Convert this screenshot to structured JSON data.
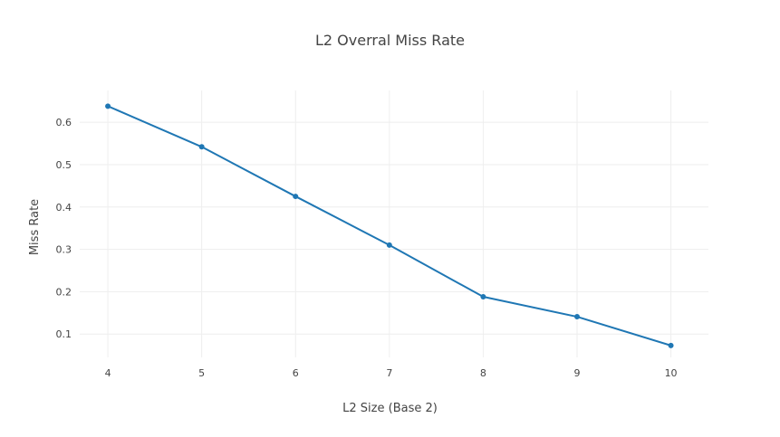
{
  "chart_data": {
    "type": "line",
    "title": "L2 Overral Miss Rate",
    "xlabel": "L2 Size (Base 2)",
    "ylabel": "Miss Rate",
    "x": [
      4,
      5,
      6,
      7,
      8,
      9,
      10
    ],
    "series": [
      {
        "values": [
          0.638,
          0.542,
          0.425,
          0.31,
          0.188,
          0.141,
          0.073
        ],
        "color": "#1f77b4"
      }
    ],
    "xticks": [
      "4",
      "5",
      "6",
      "7",
      "8",
      "9",
      "10"
    ],
    "yticks": [
      "0.1",
      "0.2",
      "0.3",
      "0.4",
      "0.5",
      "0.6"
    ],
    "xlim": [
      3.7,
      10.4
    ],
    "ylim": [
      0.045,
      0.675
    ],
    "grid": true,
    "legend": "none"
  }
}
